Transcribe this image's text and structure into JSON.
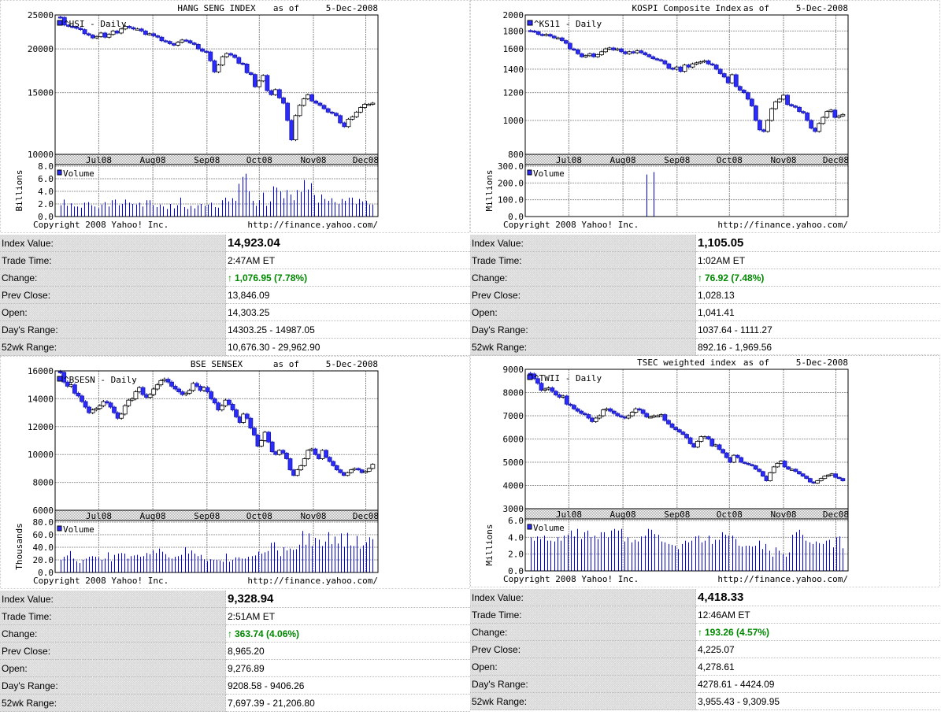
{
  "colors": {
    "up_arrow": "#008800",
    "candle_down": "#2b2bff",
    "volume_bar": "#0000ee"
  },
  "chart_data": [
    {
      "type": "candlestick",
      "title": "HANG SENG INDEX",
      "as_of_label": "as of",
      "as_of_date": "5-Dec-2008",
      "series_label": "^HSI - Daily",
      "y_scale": "log",
      "ylim": [
        10000,
        25000
      ],
      "yticks": [
        10000,
        15000,
        20000,
        25000
      ],
      "ytick_labels": [
        "10000",
        "15000",
        "20000",
        "25000"
      ],
      "xlim": [
        "2008-06-06",
        "2008-12-08"
      ],
      "x_start": "2008-06-09",
      "x_end": "2008-12-05",
      "month_ticks": [
        {
          "date": "2008-07-01",
          "label": "Jul08"
        },
        {
          "date": "2008-08-01",
          "label": "Aug08"
        },
        {
          "date": "2008-09-01",
          "label": "Sep08"
        },
        {
          "date": "2008-10-01",
          "label": "Oct08"
        },
        {
          "date": "2008-11-01",
          "label": "Nov08"
        },
        {
          "date": "2008-12-01",
          "label": "Dec08"
        }
      ],
      "closes": [
        24600,
        23400,
        23200,
        23100,
        22900,
        22700,
        22100,
        21900,
        21500,
        21700,
        22200,
        21600,
        22000,
        22500,
        22200,
        22800,
        23200,
        23000,
        22800,
        22800,
        22500,
        22000,
        22100,
        21800,
        21600,
        21100,
        21000,
        20700,
        20500,
        20900,
        21200,
        21100,
        20800,
        20600,
        20000,
        19700,
        19600,
        18500,
        17200,
        18000,
        19000,
        19400,
        19200,
        18900,
        18200,
        18100,
        17100,
        16900,
        15600,
        16200,
        16800,
        15200,
        14800,
        15300,
        14500,
        14000,
        12500,
        11000,
        12900,
        13800,
        14400,
        14800,
        14200,
        14000,
        13800,
        13500,
        13200,
        13100,
        12900,
        12300,
        12000,
        12600,
        12800,
        13200,
        13600,
        13900,
        13900,
        14000
      ],
      "volume": {
        "label": "Volume",
        "unit_label": "Billions",
        "ylim": [
          0,
          8
        ],
        "yticks": [
          0,
          2,
          4,
          6,
          8
        ],
        "ytick_labels": [
          "0.0",
          "2.0",
          "4.0",
          "6.0",
          "8.0"
        ],
        "values": [
          1.8,
          2.7,
          1.7,
          2.1,
          1.6,
          1.6,
          1.4,
          2.2,
          2.3,
          1.8,
          1.6,
          1.3,
          1.9,
          2.3,
          1.6,
          2.6,
          2.7,
          1.8,
          2.0,
          2.7,
          2.2,
          2.0,
          1.9,
          2.2,
          1.6,
          2.6,
          2.6,
          1.8,
          1.5,
          1.9,
          1.6,
          1.2,
          2.0,
          1.3,
          1.8,
          3.0,
          1.5,
          1.2,
          1.7,
          1.3,
          1.8,
          2.0,
          1.7,
          1.9,
          2.2,
          1.5,
          1.4,
          2.6,
          3.0,
          2.4,
          2.9,
          2.5,
          5.2,
          6.3,
          6.8,
          4.0,
          2.5,
          1.7,
          2.6,
          3.8,
          1.7,
          2.4,
          4.8,
          4.6,
          4.0,
          2.9,
          4.2,
          3.5,
          2.6,
          4.2,
          3.9,
          5.8,
          4.3,
          5.3,
          3.4,
          2.2,
          3.5,
          2.8,
          2.5,
          2.9,
          2.3,
          2.0,
          2.8,
          2.5,
          3.0,
          3.0,
          2.0,
          2.8,
          2.4,
          2.5,
          1.9,
          1.9
        ]
      },
      "copyright": "Copyright 2008 Yahoo! Inc.",
      "url": "http://finance.yahoo.com/"
    },
    {
      "type": "candlestick",
      "title": "KOSPI Composite Index",
      "as_of_label": "as of",
      "as_of_date": "5-Dec-2008",
      "series_label": "^KS11 - Daily",
      "y_scale": "log",
      "ylim": [
        800,
        2000
      ],
      "yticks": [
        800,
        1000,
        1200,
        1400,
        1600,
        1800,
        2000
      ],
      "ytick_labels": [
        "800",
        "1000",
        "1200",
        "1400",
        "1600",
        "1800",
        "2000"
      ],
      "xlim": [
        "2008-06-06",
        "2008-12-08"
      ],
      "x_start": "2008-06-09",
      "x_end": "2008-12-05",
      "month_ticks": [
        {
          "date": "2008-07-01",
          "label": "Jul08"
        },
        {
          "date": "2008-08-01",
          "label": "Aug08"
        },
        {
          "date": "2008-09-01",
          "label": "Sep08"
        },
        {
          "date": "2008-10-01",
          "label": "Oct08"
        },
        {
          "date": "2008-11-01",
          "label": "Nov08"
        },
        {
          "date": "2008-12-01",
          "label": "Dec08"
        }
      ],
      "closes": [
        1800,
        1790,
        1760,
        1750,
        1760,
        1740,
        1720,
        1720,
        1690,
        1660,
        1600,
        1590,
        1550,
        1520,
        1530,
        1550,
        1520,
        1540,
        1570,
        1600,
        1610,
        1590,
        1600,
        1570,
        1550,
        1570,
        1560,
        1580,
        1560,
        1540,
        1520,
        1500,
        1490,
        1480,
        1450,
        1410,
        1400,
        1420,
        1380,
        1440,
        1420,
        1450,
        1460,
        1470,
        1480,
        1450,
        1440,
        1400,
        1360,
        1330,
        1280,
        1350,
        1250,
        1220,
        1200,
        1150,
        1100,
        1000,
        940,
        930,
        1000,
        1080,
        1130,
        1150,
        1180,
        1110,
        1100,
        1090,
        1060,
        1050,
        1000,
        950,
        930,
        980,
        1020,
        1060,
        1070,
        1020,
        1030,
        1040
      ],
      "volume": {
        "label": "Volume",
        "unit_label": "Millions",
        "ylim": [
          0,
          300
        ],
        "yticks": [
          0,
          100,
          200,
          300
        ],
        "ytick_labels": [
          "0.0",
          "100.0",
          "200.0",
          "300.0"
        ],
        "values": [
          0,
          0,
          0,
          0,
          0,
          0,
          0,
          0,
          0,
          0,
          0,
          0,
          0,
          0,
          0,
          0,
          0,
          0,
          0,
          0,
          0,
          0,
          0,
          0,
          0,
          0,
          0,
          0,
          0,
          0,
          0,
          0,
          0,
          250,
          0,
          265,
          0,
          0,
          0,
          0,
          0,
          0,
          0,
          0,
          0,
          0,
          0,
          0,
          0,
          0,
          0,
          0,
          0,
          0,
          0,
          0,
          0,
          0,
          0,
          0,
          0,
          0,
          0,
          0,
          0,
          0,
          0,
          0,
          0,
          0,
          0,
          0,
          0,
          0,
          0,
          0,
          0,
          0,
          0,
          0,
          0,
          0,
          0,
          0,
          0,
          0,
          0,
          0,
          0,
          0
        ]
      },
      "copyright": "Copyright 2008 Yahoo! Inc.",
      "url": "http://finance.yahoo.com/"
    },
    {
      "type": "candlestick",
      "title": "BSE SENSEX",
      "as_of_label": "as of",
      "as_of_date": "5-Dec-2008",
      "series_label": "^BSESN - Daily",
      "y_scale": "linear",
      "ylim": [
        6000,
        16000
      ],
      "yticks": [
        6000,
        8000,
        10000,
        12000,
        14000,
        16000
      ],
      "ytick_labels": [
        "6000",
        "8000",
        "10000",
        "12000",
        "14000",
        "16000"
      ],
      "xlim": [
        "2008-06-06",
        "2008-12-08"
      ],
      "x_start": "2008-06-09",
      "x_end": "2008-12-05",
      "month_ticks": [
        {
          "date": "2008-07-01",
          "label": "Jul08"
        },
        {
          "date": "2008-08-01",
          "label": "Aug08"
        },
        {
          "date": "2008-09-01",
          "label": "Sep08"
        },
        {
          "date": "2008-10-01",
          "label": "Oct08"
        },
        {
          "date": "2008-11-01",
          "label": "Nov08"
        },
        {
          "date": "2008-12-01",
          "label": "Dec08"
        }
      ],
      "closes": [
        15900,
        15200,
        14900,
        15000,
        14400,
        14200,
        13800,
        13400,
        13000,
        13200,
        13300,
        13500,
        13800,
        13700,
        13400,
        13000,
        12600,
        12900,
        13500,
        13900,
        14000,
        14500,
        14800,
        14300,
        14100,
        14300,
        14700,
        15000,
        15300,
        15400,
        15200,
        14900,
        14700,
        14500,
        14300,
        14400,
        14600,
        15100,
        14900,
        14600,
        14800,
        14500,
        14000,
        13700,
        13200,
        13500,
        13900,
        13600,
        13200,
        12700,
        12300,
        12900,
        12600,
        11900,
        11400,
        10600,
        11000,
        11600,
        10900,
        10200,
        10000,
        10300,
        10100,
        9700,
        8900,
        8500,
        8900,
        9200,
        9700,
        10300,
        10400,
        10000,
        9700,
        10300,
        9800,
        9500,
        9200,
        8900,
        8700,
        8500,
        8700,
        8900,
        9000,
        8900,
        8700,
        8800,
        9000,
        9300
      ],
      "volume": {
        "label": "Volume",
        "unit_label": "Thousands",
        "ylim": [
          0,
          80
        ],
        "yticks": [
          0,
          20,
          40,
          60,
          80
        ],
        "ytick_labels": [
          "0.0",
          "20.0",
          "40.0",
          "60.0",
          "80.0"
        ],
        "values": [
          20,
          25,
          27,
          34,
          22,
          18,
          15,
          20,
          22,
          25,
          26,
          25,
          24,
          20,
          22,
          32,
          18,
          28,
          30,
          31,
          30,
          22,
          26,
          27,
          28,
          25,
          26,
          31,
          29,
          35,
          31,
          38,
          33,
          29,
          24,
          22,
          25,
          26,
          28,
          40,
          30,
          35,
          30,
          26,
          28,
          21,
          18,
          21,
          20,
          20,
          19,
          17,
          30,
          17,
          20,
          24,
          24,
          22,
          22,
          25,
          26,
          27,
          33,
          30,
          32,
          34,
          47,
          48,
          35,
          26,
          40,
          35,
          38,
          36,
          37,
          44,
          66,
          44,
          62,
          42,
          55,
          52,
          42,
          49,
          64,
          45,
          57,
          46,
          62,
          41,
          63,
          43,
          42,
          58,
          38,
          43,
          48,
          56,
          53
        ]
      },
      "copyright": "Copyright 2008 Yahoo! Inc.",
      "url": "http://finance.yahoo.com/"
    },
    {
      "type": "candlestick",
      "title": "TSEC weighted index",
      "as_of_label": "as of",
      "as_of_date": "5-Dec-2008",
      "series_label": "^TWII - Daily",
      "y_scale": "linear",
      "ylim": [
        3000,
        9000
      ],
      "yticks": [
        3000,
        4000,
        5000,
        6000,
        7000,
        8000,
        9000
      ],
      "ytick_labels": [
        "3000",
        "4000",
        "5000",
        "6000",
        "7000",
        "8000",
        "9000"
      ],
      "xlim": [
        "2008-06-06",
        "2008-12-08"
      ],
      "x_start": "2008-06-09",
      "x_end": "2008-12-05",
      "month_ticks": [
        {
          "date": "2008-07-01",
          "label": "Jul08"
        },
        {
          "date": "2008-08-01",
          "label": "Aug08"
        },
        {
          "date": "2008-09-01",
          "label": "Sep08"
        },
        {
          "date": "2008-10-01",
          "label": "Oct08"
        },
        {
          "date": "2008-11-01",
          "label": "Nov08"
        },
        {
          "date": "2008-12-01",
          "label": "Dec08"
        }
      ],
      "closes": [
        8800,
        8600,
        8400,
        8100,
        8150,
        8200,
        8050,
        7900,
        7800,
        7850,
        7500,
        7450,
        7300,
        7200,
        7100,
        7050,
        6900,
        6750,
        6900,
        7000,
        7250,
        7300,
        7200,
        7100,
        7000,
        6950,
        6900,
        7000,
        7150,
        7300,
        7250,
        7100,
        6950,
        6950,
        7000,
        7000,
        7050,
        6800,
        6650,
        6500,
        6400,
        6300,
        6200,
        6050,
        5800,
        5650,
        5900,
        6100,
        6100,
        6000,
        5700,
        5750,
        5550,
        5400,
        5200,
        5000,
        5300,
        5200,
        5000,
        4950,
        4900,
        4850,
        4700,
        4600,
        4400,
        4200,
        4550,
        4800,
        4950,
        5050,
        4800,
        4700,
        4700,
        4600,
        4500,
        4400,
        4300,
        4150,
        4100,
        4200,
        4300,
        4400,
        4450,
        4500,
        4350,
        4300,
        4200
      ],
      "volume": {
        "label": "Volume",
        "unit_label": "Millions",
        "ylim": [
          0,
          6
        ],
        "yticks": [
          0,
          2,
          4,
          6
        ],
        "ytick_labels": [
          "0.0",
          "2.0",
          "4.0",
          "6.0"
        ],
        "values": [
          4.0,
          3.6,
          4.1,
          3.8,
          4.2,
          3.6,
          3.6,
          3.5,
          4.0,
          3.6,
          4.2,
          4.3,
          4.8,
          4.1,
          5.0,
          3.8,
          4.6,
          4.8,
          4.0,
          4.2,
          3.8,
          4.6,
          4.6,
          4.0,
          4.8,
          5.0,
          4.8,
          5.0,
          3.5,
          4.0,
          3.4,
          3.7,
          3.5,
          4.1,
          4.2,
          5.0,
          4.9,
          4.4,
          4.3,
          3.5,
          3.4,
          3.2,
          3.1,
          3.0,
          2.6,
          3.2,
          3.6,
          3.4,
          3.6,
          4.1,
          4.2,
          3.4,
          3.6,
          4.2,
          3.2,
          3.7,
          3.7,
          4.6,
          4.3,
          4.2,
          4.2,
          3.8,
          3.0,
          2.9,
          3.0,
          3.0,
          2.9,
          3.0,
          3.6,
          2.6,
          3.2,
          2.4,
          1.7,
          2.8,
          2.4,
          2.0,
          1.7,
          2.2,
          4.3,
          4.6,
          4.9,
          4.3,
          3.6,
          3.4,
          3.2,
          3.5,
          3.3,
          3.2,
          3.6,
          3.7,
          2.8,
          4.0,
          4.1,
          2.7
        ]
      },
      "copyright": "Copyright 2008 Yahoo! Inc.",
      "url": "http://finance.yahoo.com/"
    }
  ],
  "quotes": [
    {
      "rows": [
        {
          "label": "Index Value:",
          "value": "14,923.04"
        },
        {
          "label": "Trade Time:",
          "value": "2:47AM ET"
        },
        {
          "label": "Change:",
          "value": "1,076.95 (7.78%)",
          "direction": "up"
        },
        {
          "label": "Prev Close:",
          "value": "13,846.09"
        },
        {
          "label": "Open:",
          "value": "14,303.25"
        },
        {
          "label": "Day's Range:",
          "value": "14303.25 - 14987.05"
        },
        {
          "label": "52wk Range:",
          "value": "10,676.30 - 29,962.90"
        }
      ]
    },
    {
      "rows": [
        {
          "label": "Index Value:",
          "value": "1,105.05"
        },
        {
          "label": "Trade Time:",
          "value": "1:02AM ET"
        },
        {
          "label": "Change:",
          "value": "76.92 (7.48%)",
          "direction": "up"
        },
        {
          "label": "Prev Close:",
          "value": "1,028.13"
        },
        {
          "label": "Open:",
          "value": "1,041.41"
        },
        {
          "label": "Day's Range:",
          "value": "1037.64 - 1111.27"
        },
        {
          "label": "52wk Range:",
          "value": "892.16 - 1,969.56"
        }
      ]
    },
    {
      "rows": [
        {
          "label": "Index Value:",
          "value": "9,328.94"
        },
        {
          "label": "Trade Time:",
          "value": "2:51AM ET"
        },
        {
          "label": "Change:",
          "value": "363.74 (4.06%)",
          "direction": "up"
        },
        {
          "label": "Prev Close:",
          "value": "8,965.20"
        },
        {
          "label": "Open:",
          "value": "9,276.89"
        },
        {
          "label": "Day's Range:",
          "value": "9208.58 - 9406.26"
        },
        {
          "label": "52wk Range:",
          "value": "7,697.39 - 21,206.80"
        }
      ]
    },
    {
      "rows": [
        {
          "label": "Index Value:",
          "value": "4,418.33"
        },
        {
          "label": "Trade Time:",
          "value": "12:46AM ET"
        },
        {
          "label": "Change:",
          "value": "193.26 (4.57%)",
          "direction": "up"
        },
        {
          "label": "Prev Close:",
          "value": "4,225.07"
        },
        {
          "label": "Open:",
          "value": "4,278.61"
        },
        {
          "label": "Day's Range:",
          "value": "4278.61 - 4424.09"
        },
        {
          "label": "52wk Range:",
          "value": "3,955.43 - 9,309.95"
        }
      ]
    }
  ]
}
